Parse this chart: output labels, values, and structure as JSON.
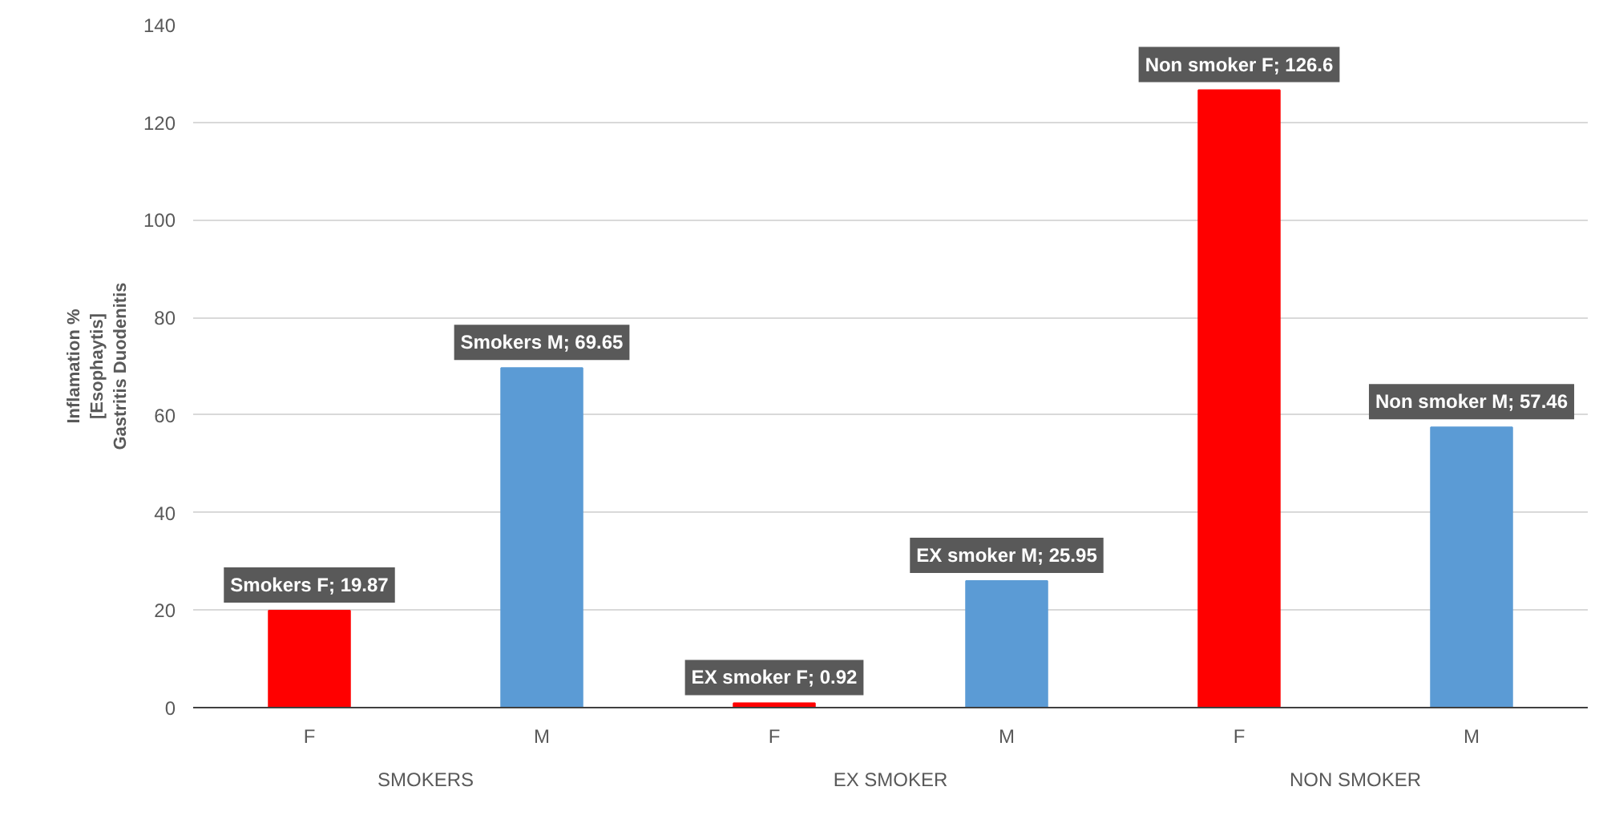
{
  "chart_data": {
    "type": "bar",
    "ylabel": "Inflamation %\n[Esophaytis]\nGastritis Duodenitis",
    "categories": [
      "F",
      "M",
      "F",
      "M",
      "F",
      "M"
    ],
    "values": [
      19.87,
      69.65,
      0.92,
      25.95,
      126.6,
      57.46
    ],
    "colors": [
      "#ff0000",
      "#5b9bd5",
      "#ff0000",
      "#5b9bd5",
      "#ff0000",
      "#5b9bd5"
    ],
    "value_labels": [
      "Smokers F; 19.87",
      "Smokers M; 69.65",
      "EX smoker F; 0.92",
      "EX smoker M; 25.95",
      "Non smoker F; 126.6",
      "Non smoker M; 57.46"
    ],
    "annotations": [
      "SMOKERS",
      "EX SMOKER",
      "NON SMOKER"
    ],
    "ylim": [
      0,
      140
    ],
    "yticks": [
      0,
      20,
      40,
      60,
      80,
      100,
      120,
      140
    ],
    "grid": "y"
  }
}
